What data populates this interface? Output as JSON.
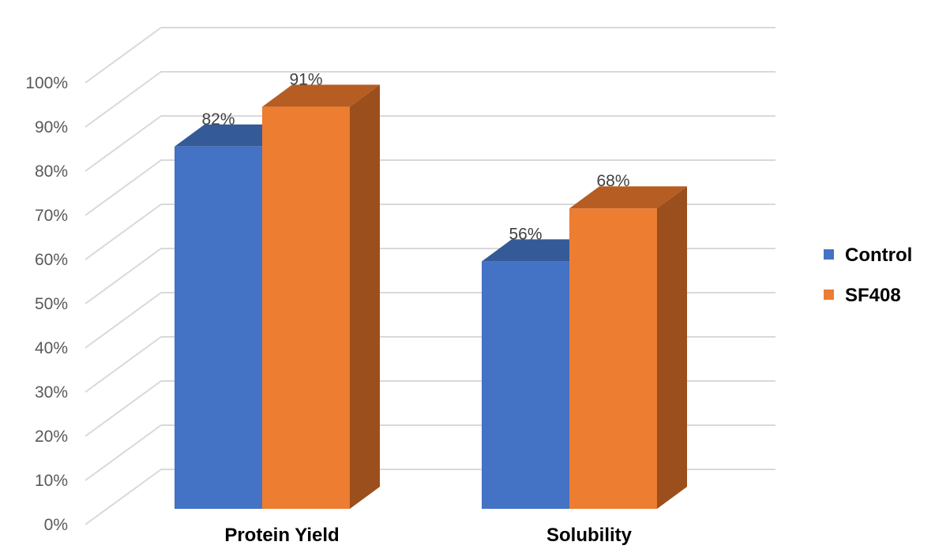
{
  "chart_data": {
    "type": "bar",
    "style": "3d-clustered-column",
    "categories": [
      "Protein Yield",
      "Solubility"
    ],
    "series": [
      {
        "name": "Control",
        "values": [
          82,
          56
        ],
        "color": "#4472c4",
        "top_color": "#345a98",
        "side_color": "#2f5597"
      },
      {
        "name": "SF408",
        "values": [
          91,
          68
        ],
        "color": "#ed7d31",
        "top_color": "#b55d22",
        "side_color": "#9a4f1c"
      }
    ],
    "data_labels": [
      [
        "82%",
        "56%"
      ],
      [
        "91%",
        "68%"
      ]
    ],
    "yticks": [
      "0%",
      "10%",
      "20%",
      "30%",
      "40%",
      "50%",
      "60%",
      "70%",
      "80%",
      "90%",
      "100%"
    ],
    "ylim": [
      0,
      100
    ],
    "grid": true,
    "grid_color": "#d9d9d9",
    "legend_position": "right",
    "title": "",
    "xlabel": "",
    "ylabel": ""
  }
}
